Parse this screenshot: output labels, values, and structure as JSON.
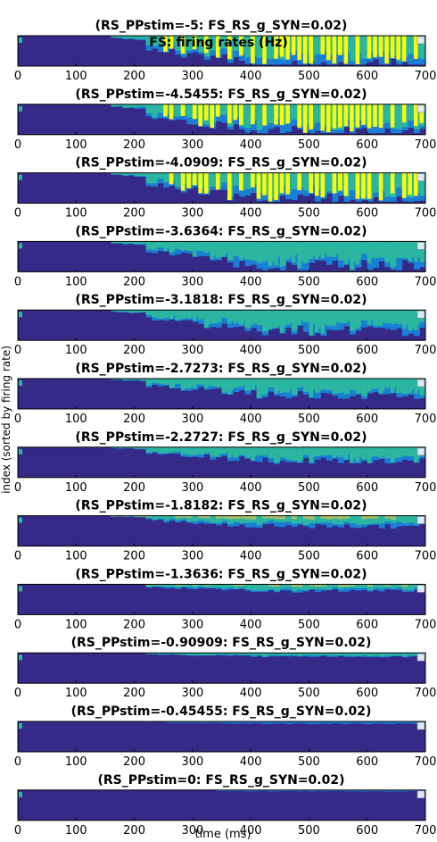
{
  "figure": {
    "suptitle": "FS: firing rates (Hz)",
    "xlabel": "time (ms)",
    "ylabel": "index (sorted by firing rate)"
  },
  "colors": {
    "low": "#352a87",
    "blue": "#1a7fd4",
    "teal": "#2bb6a0",
    "yellow": "#f9fb0e",
    "light_blue": "#dbeaf7"
  },
  "chart_data": [
    {
      "type": "heatmap",
      "title": "(RS_PPstim=-5: FS_RS_g_SYN=0.02)",
      "peak": "yellow",
      "intensity": 1.0,
      "xlim": [
        0,
        700
      ],
      "xticks": [
        0,
        100,
        200,
        300,
        400,
        500,
        600,
        700
      ]
    },
    {
      "type": "heatmap",
      "title": "(RS_PPstim=-4.5455: FS_RS_g_SYN=0.02)",
      "peak": "yellow",
      "intensity": 0.95,
      "xlim": [
        0,
        700
      ],
      "xticks": [
        0,
        100,
        200,
        300,
        400,
        500,
        600,
        700
      ]
    },
    {
      "type": "heatmap",
      "title": "(RS_PPstim=-4.0909: FS_RS_g_SYN=0.02)",
      "peak": "yellow",
      "intensity": 0.9,
      "xlim": [
        0,
        700
      ],
      "xticks": [
        0,
        100,
        200,
        300,
        400,
        500,
        600,
        700
      ]
    },
    {
      "type": "heatmap",
      "title": "(RS_PPstim=-3.6364: FS_RS_g_SYN=0.02)",
      "peak": "teal",
      "intensity": 0.8,
      "xlim": [
        0,
        700
      ],
      "xticks": [
        0,
        100,
        200,
        300,
        400,
        500,
        600,
        700
      ]
    },
    {
      "type": "heatmap",
      "title": "(RS_PPstim=-3.1818: FS_RS_g_SYN=0.02)",
      "peak": "teal",
      "intensity": 0.7,
      "xlim": [
        0,
        700
      ],
      "xticks": [
        0,
        100,
        200,
        300,
        400,
        500,
        600,
        700
      ]
    },
    {
      "type": "heatmap",
      "title": "(RS_PPstim=-2.7273: FS_RS_g_SYN=0.02)",
      "peak": "teal",
      "intensity": 0.55,
      "xlim": [
        0,
        700
      ],
      "xticks": [
        0,
        100,
        200,
        300,
        400,
        500,
        600,
        700
      ]
    },
    {
      "type": "heatmap",
      "title": "(RS_PPstim=-2.2727: FS_RS_g_SYN=0.02)",
      "peak": "teal",
      "intensity": 0.45,
      "xlim": [
        0,
        700
      ],
      "xticks": [
        0,
        100,
        200,
        300,
        400,
        500,
        600,
        700
      ]
    },
    {
      "type": "heatmap",
      "title": "(RS_PPstim=-1.8182: FS_RS_g_SYN=0.02)",
      "peak": "blue",
      "intensity": 0.35,
      "xlim": [
        0,
        700
      ],
      "xticks": [
        0,
        100,
        200,
        300,
        400,
        500,
        600,
        700
      ]
    },
    {
      "type": "heatmap",
      "title": "(RS_PPstim=-1.3636: FS_RS_g_SYN=0.02)",
      "peak": "blue",
      "intensity": 0.22,
      "xlim": [
        0,
        700
      ],
      "xticks": [
        0,
        100,
        200,
        300,
        400,
        500,
        600,
        700
      ]
    },
    {
      "type": "heatmap",
      "title": "(RS_PPstim=-0.90909: FS_RS_g_SYN=0.02)",
      "peak": "blue",
      "intensity": 0.12,
      "xlim": [
        0,
        700
      ],
      "xticks": [
        0,
        100,
        200,
        300,
        400,
        500,
        600,
        700
      ]
    },
    {
      "type": "heatmap",
      "title": "(RS_PPstim=-0.45455: FS_RS_g_SYN=0.02)",
      "peak": "blue",
      "intensity": 0.07,
      "xlim": [
        0,
        700
      ],
      "xticks": [
        0,
        100,
        200,
        300,
        400,
        500,
        600,
        700
      ]
    },
    {
      "type": "heatmap",
      "title": "(RS_PPstim=0: FS_RS_g_SYN=0.02)",
      "peak": "blue",
      "intensity": 0.04,
      "xlim": [
        0,
        700
      ],
      "xticks": [
        0,
        100,
        200,
        300,
        400,
        500,
        600,
        700
      ]
    }
  ]
}
